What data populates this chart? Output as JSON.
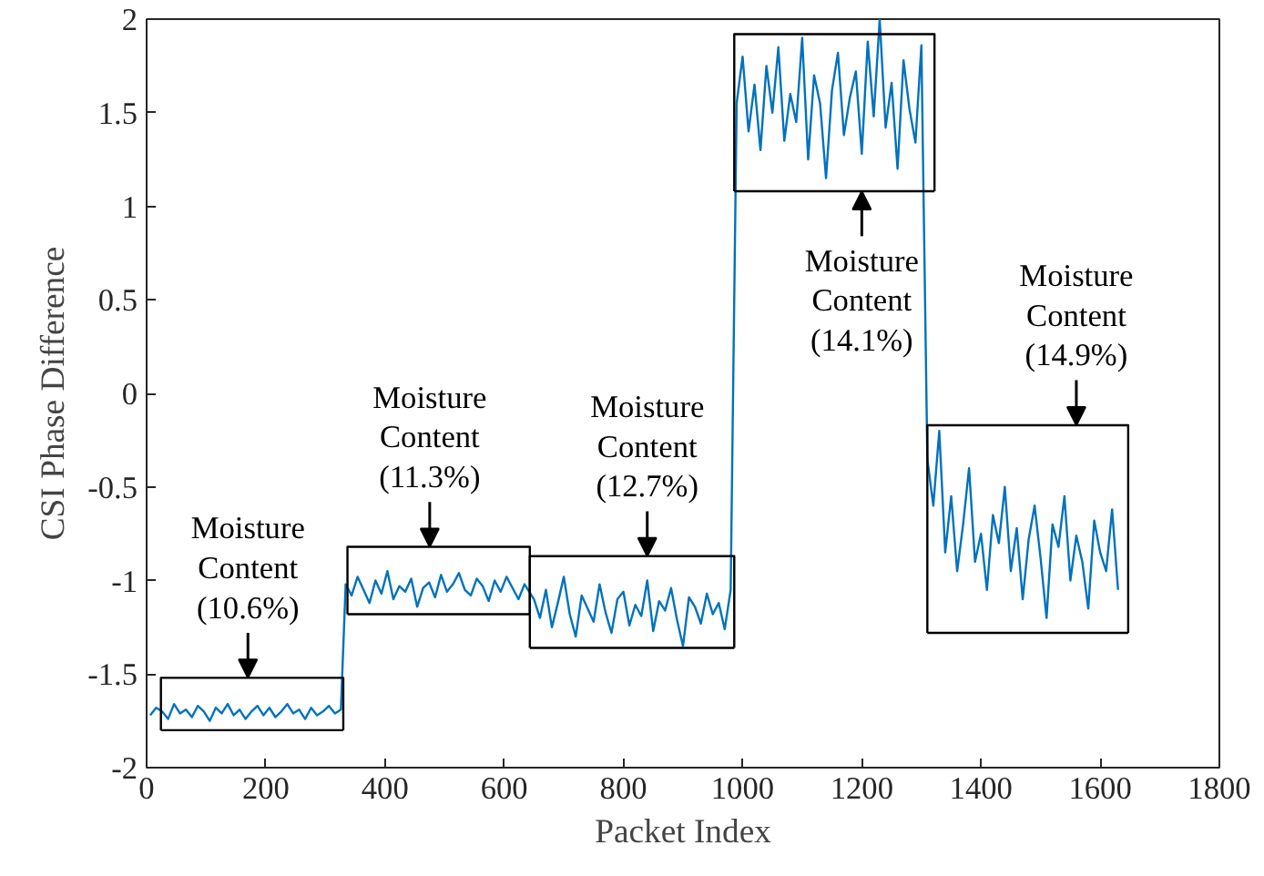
{
  "chart_data": {
    "type": "line",
    "xlabel": "Packet Index",
    "ylabel": "CSI Phase Difference",
    "xlim": [
      0,
      1800
    ],
    "xticks": [
      0,
      200,
      400,
      600,
      800,
      1000,
      1200,
      1400,
      1600,
      1800
    ],
    "ylim": [
      -2,
      2
    ],
    "yticks": [
      -2,
      -1.5,
      -1,
      -0.5,
      0,
      0.5,
      1,
      1.5,
      2
    ],
    "grid": false,
    "marker": "none",
    "line_style": "solid",
    "series": [
      {
        "color": "#0072bd",
        "x": [
          6,
          16,
          26,
          36,
          46,
          56,
          66,
          76,
          86,
          96,
          106,
          116,
          126,
          136,
          146,
          156,
          166,
          176,
          186,
          196,
          206,
          216,
          226,
          236,
          246,
          256,
          266,
          276,
          286,
          296,
          306,
          316,
          326,
          334,
          344,
          354,
          364,
          374,
          384,
          394,
          404,
          414,
          424,
          434,
          444,
          454,
          464,
          474,
          484,
          494,
          504,
          514,
          524,
          534,
          544,
          554,
          564,
          574,
          584,
          594,
          604,
          614,
          624,
          634,
          644,
          650,
          660,
          670,
          680,
          690,
          700,
          710,
          720,
          730,
          740,
          750,
          760,
          770,
          780,
          790,
          800,
          810,
          820,
          830,
          840,
          850,
          860,
          870,
          880,
          890,
          900,
          910,
          920,
          930,
          940,
          950,
          960,
          970,
          980,
          990,
          1000,
          1010,
          1020,
          1030,
          1040,
          1050,
          1060,
          1070,
          1080,
          1090,
          1100,
          1110,
          1120,
          1130,
          1140,
          1150,
          1160,
          1170,
          1180,
          1190,
          1200,
          1210,
          1220,
          1230,
          1240,
          1250,
          1260,
          1270,
          1280,
          1290,
          1300,
          1310,
          1320,
          1330,
          1340,
          1350,
          1360,
          1370,
          1380,
          1390,
          1400,
          1410,
          1420,
          1430,
          1440,
          1450,
          1460,
          1470,
          1480,
          1490,
          1500,
          1510,
          1520,
          1530,
          1540,
          1550,
          1560,
          1570,
          1580,
          1590,
          1600,
          1610,
          1620,
          1630
        ],
        "values": [
          -1.72,
          -1.68,
          -1.7,
          -1.74,
          -1.66,
          -1.71,
          -1.69,
          -1.73,
          -1.67,
          -1.7,
          -1.75,
          -1.68,
          -1.71,
          -1.66,
          -1.72,
          -1.69,
          -1.74,
          -1.7,
          -1.67,
          -1.72,
          -1.68,
          -1.73,
          -1.7,
          -1.66,
          -1.71,
          -1.69,
          -1.74,
          -1.68,
          -1.72,
          -1.7,
          -1.67,
          -1.71,
          -1.69,
          -1.02,
          -1.08,
          -0.98,
          -1.05,
          -1.12,
          -1.0,
          -1.07,
          -0.95,
          -1.1,
          -1.03,
          -1.06,
          -0.99,
          -1.14,
          -1.04,
          -1.01,
          -1.09,
          -0.97,
          -1.06,
          -1.02,
          -0.96,
          -1.05,
          -1.08,
          -0.99,
          -1.03,
          -1.11,
          -1.0,
          -1.06,
          -0.98,
          -1.04,
          -1.1,
          -1.02,
          -1.07,
          -1.1,
          -1.2,
          -1.05,
          -1.25,
          -1.12,
          -0.98,
          -1.18,
          -1.3,
          -1.08,
          -1.15,
          -1.22,
          -1.02,
          -1.17,
          -1.28,
          -1.1,
          -1.06,
          -1.24,
          -1.13,
          -1.19,
          -1.0,
          -1.27,
          -1.11,
          -1.16,
          -1.04,
          -1.21,
          -1.35,
          -1.09,
          -1.14,
          -1.23,
          -1.07,
          -1.18,
          -1.12,
          -1.26,
          -1.05,
          1.55,
          1.8,
          1.4,
          1.65,
          1.3,
          1.75,
          1.5,
          1.85,
          1.35,
          1.6,
          1.45,
          1.9,
          1.25,
          1.7,
          1.55,
          1.15,
          1.62,
          1.82,
          1.38,
          1.58,
          1.72,
          1.28,
          1.88,
          1.48,
          2.0,
          1.42,
          1.66,
          1.2,
          1.78,
          1.52,
          1.34,
          1.86,
          -0.35,
          -0.6,
          -0.2,
          -0.85,
          -0.55,
          -0.95,
          -0.7,
          -0.4,
          -0.9,
          -0.75,
          -1.05,
          -0.65,
          -0.8,
          -0.5,
          -0.95,
          -0.72,
          -1.1,
          -0.78,
          -0.6,
          -0.88,
          -1.2,
          -0.7,
          -0.82,
          -0.55,
          -1.0,
          -0.76,
          -0.9,
          -1.15,
          -0.68,
          -0.85,
          -0.95,
          -0.62,
          -1.05
        ]
      },
      {
        "color": "#000000",
        "x": [
          24,
          24,
          330,
          330
        ],
        "values": [
          -1.8,
          -1.52,
          -1.52,
          -1.8
        ]
      },
      {
        "color": "#000000",
        "x": [
          24,
          330
        ],
        "values": [
          -1.8,
          -1.8
        ]
      },
      {
        "color": "#000000",
        "x": [
          337,
          337,
          643,
          643
        ],
        "values": [
          -1.18,
          -0.82,
          -0.82,
          -1.18
        ]
      },
      {
        "color": "#000000",
        "x": [
          337,
          643
        ],
        "values": [
          -1.18,
          -1.18
        ]
      },
      {
        "color": "#000000",
        "x": [
          643,
          643,
          986,
          986
        ],
        "values": [
          -1.36,
          -0.87,
          -0.87,
          -1.36
        ]
      },
      {
        "color": "#000000",
        "x": [
          643,
          986
        ],
        "values": [
          -1.36,
          -1.36
        ]
      },
      {
        "color": "#000000",
        "x": [
          986,
          986,
          1322,
          1322
        ],
        "values": [
          1.08,
          1.92,
          1.92,
          1.08
        ]
      },
      {
        "color": "#000000",
        "x": [
          986,
          1322
        ],
        "values": [
          1.08,
          1.08
        ]
      },
      {
        "color": "#000000",
        "x": [
          1310,
          1310,
          1647,
          1647
        ],
        "values": [
          -1.28,
          -0.17,
          -0.17,
          -1.28
        ]
      },
      {
        "color": "#000000",
        "x": [
          1310,
          1647
        ],
        "values": [
          -1.28,
          -1.28
        ]
      }
    ],
    "annotations": [
      {
        "text": "Moisture\nContent\n(10.6%)",
        "x": 170,
        "y": -1.52
      },
      {
        "text": "Moisture\nContent\n(11.3%)",
        "x": 475,
        "y": -0.82
      },
      {
        "text": "Moisture\nContent\n(12.7%)",
        "x": 840,
        "y": -0.87
      },
      {
        "text": "Moisture\nContent\n(14.1%)",
        "x": 1200,
        "y": 1.08
      },
      {
        "text": "Moisture\nContent\n(14.9%)",
        "x": 1560,
        "y": -0.17
      }
    ]
  }
}
